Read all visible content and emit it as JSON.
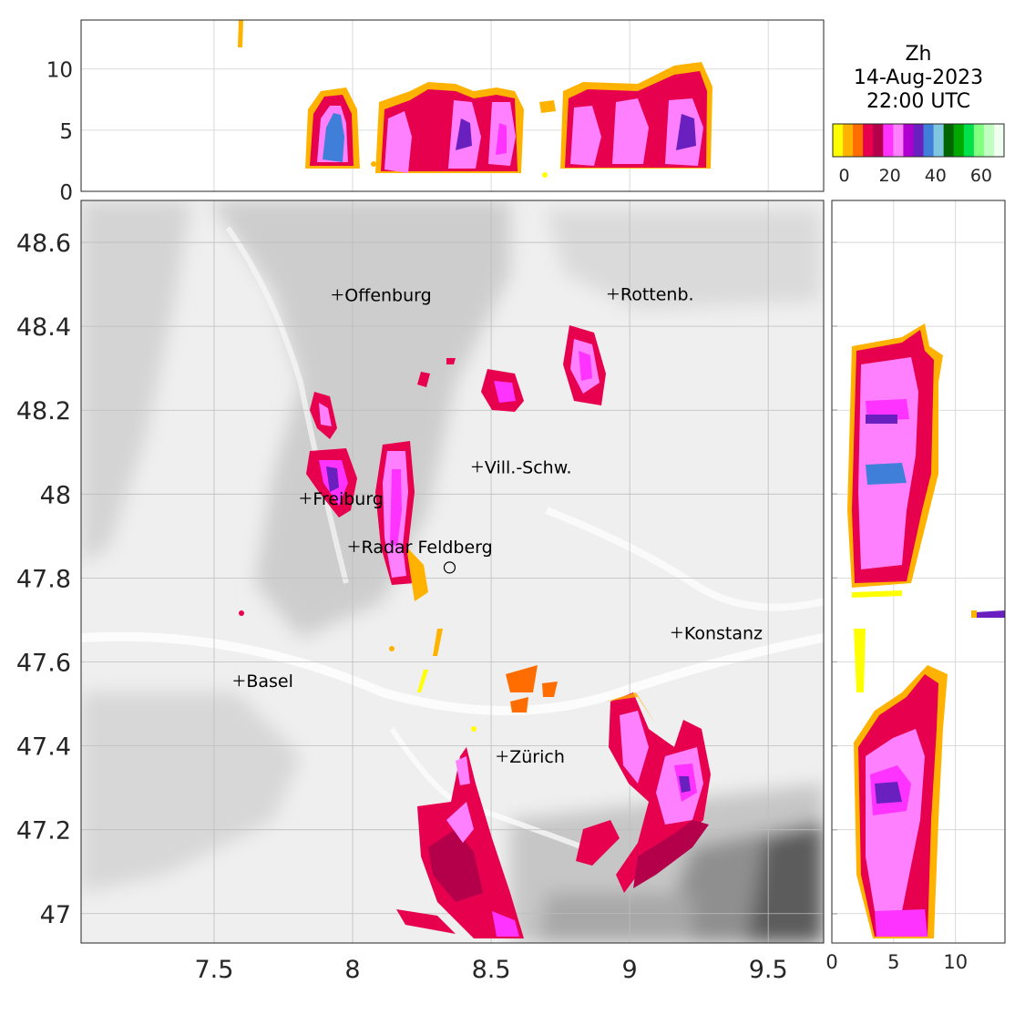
{
  "title": {
    "variable": "Zh",
    "date": "14-Aug-2023",
    "time": "22:00 UTC"
  },
  "colorbar": {
    "colors": [
      "#ffff00",
      "#ffb300",
      "#ff6d00",
      "#e6004d",
      "#b4004b",
      "#ff33ff",
      "#ff80ff",
      "#b000d0",
      "#6a1fbf",
      "#3f7fd9",
      "#7fc7e0",
      "#006400",
      "#00a800",
      "#00e04a",
      "#80ff80",
      "#c0ffc0",
      "#f0fff0"
    ],
    "tick_labels": [
      "0",
      "20",
      "40",
      "60"
    ],
    "tick_values": [
      0,
      20,
      40,
      60
    ],
    "range": [
      -5,
      70
    ]
  },
  "map": {
    "lon_ticks": [
      "7.5",
      "8",
      "8.5",
      "9",
      "9.5"
    ],
    "lon_tick_values": [
      7.5,
      8,
      8.5,
      9,
      9.5
    ],
    "lat_ticks": [
      "48.6",
      "48.4",
      "48.2",
      "48",
      "47.8",
      "47.6",
      "47.4",
      "47.2",
      "47"
    ],
    "lat_tick_values": [
      48.6,
      48.4,
      48.2,
      48,
      47.8,
      47.6,
      47.4,
      47.2,
      47
    ],
    "lon_range": [
      7.02,
      9.7
    ],
    "lat_range": [
      46.93,
      48.7
    ],
    "radar_site": {
      "lon": 8.35,
      "lat": 47.825
    },
    "cities": [
      {
        "name": "Offenburg",
        "lon": 7.945,
        "lat": 48.475
      },
      {
        "name": "Rottenb.",
        "lon": 8.94,
        "lat": 48.477
      },
      {
        "name": "Vill.-Schw.",
        "lon": 8.45,
        "lat": 48.065
      },
      {
        "name": "Freiburg",
        "lon": 7.83,
        "lat": 47.99
      },
      {
        "name": "Radar Feldberg",
        "lon": 8.005,
        "lat": 47.875
      },
      {
        "name": "Konstanz",
        "lon": 9.17,
        "lat": 47.67
      },
      {
        "name": "Basel",
        "lon": 7.59,
        "lat": 47.555
      },
      {
        "name": "Zürich",
        "lon": 8.54,
        "lat": 47.375
      }
    ]
  },
  "top_panel": {
    "height_ticks": [
      "0",
      "5",
      "10"
    ],
    "height_tick_values": [
      0,
      5,
      10
    ],
    "height_range": [
      0,
      14
    ]
  },
  "right_panel": {
    "height_ticks": [
      "0",
      "5",
      "10"
    ],
    "height_tick_values": [
      0,
      5,
      10
    ],
    "height_range": [
      0,
      14
    ]
  }
}
